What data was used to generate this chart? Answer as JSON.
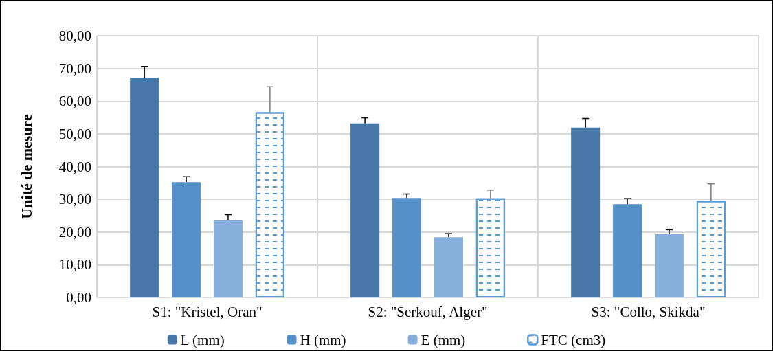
{
  "chart_data": {
    "type": "bar",
    "ylabel": "Unité de mesure",
    "categories": [
      "S1: \"Kristel, Oran\"",
      "S2: \"Serkouf, Alger\"",
      "S3: \"Collo, Skikda\""
    ],
    "series": [
      {
        "name": "L (mm)",
        "color": "#4677a7",
        "values": [
          67.2,
          53.2,
          51.9
        ],
        "errors": [
          [
            67.2,
            70.6
          ],
          [
            53.2,
            54.9
          ],
          [
            51.9,
            54.7
          ]
        ]
      },
      {
        "name": "H (mm)",
        "color": "#5591c8",
        "values": [
          35.2,
          30.4,
          28.5
        ],
        "errors": [
          [
            35.2,
            36.9
          ],
          [
            30.4,
            31.6
          ],
          [
            28.5,
            30.2
          ]
        ]
      },
      {
        "name": "E (mm)",
        "color": "#86afdb",
        "values": [
          23.5,
          18.4,
          19.3
        ],
        "errors": [
          [
            23.5,
            25.3
          ],
          [
            18.4,
            19.5
          ],
          [
            19.3,
            20.7
          ]
        ]
      },
      {
        "name": "FTC (cm3)",
        "color": "#5b9bd5",
        "values": [
          56.6,
          30.3,
          29.5
        ],
        "errors": [
          [
            56.6,
            64.4
          ],
          [
            30.3,
            32.8
          ],
          [
            29.5,
            34.7
          ]
        ]
      }
    ],
    "ylim": [
      0,
      80
    ],
    "yticks": [
      {
        "value": 0,
        "label": "0,00"
      },
      {
        "value": 10,
        "label": "10,00"
      },
      {
        "value": 20,
        "label": "20,00"
      },
      {
        "value": 30,
        "label": "30,00"
      },
      {
        "value": 40,
        "label": "40,00"
      },
      {
        "value": 50,
        "label": "50,00"
      },
      {
        "value": 60,
        "label": "60,00"
      },
      {
        "value": 70,
        "label": "70,00"
      },
      {
        "value": 80,
        "label": "80,00"
      }
    ],
    "grid": true,
    "legend": "bottom"
  }
}
